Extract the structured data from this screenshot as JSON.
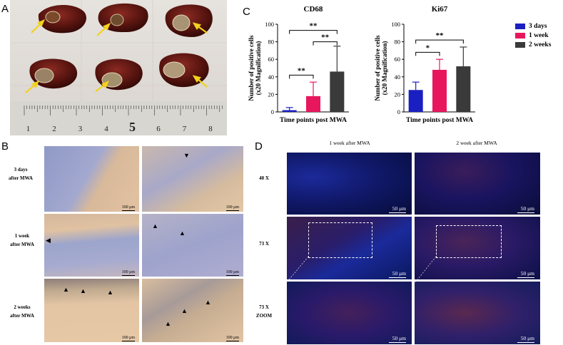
{
  "panels": {
    "a": "A",
    "b": "B",
    "c": "C",
    "d": "D"
  },
  "panel_a": {
    "ruler_numbers": [
      "1",
      "2",
      "3",
      "4",
      "5",
      "6",
      "7",
      "8"
    ]
  },
  "panel_b": {
    "rows": [
      {
        "line1": "3 days",
        "line2": "after MWA"
      },
      {
        "line1": "1 week",
        "line2": "after MWA"
      },
      {
        "line1": "2 weeks",
        "line2": "after MWA"
      }
    ],
    "scale": "100 μm"
  },
  "panel_d": {
    "columns": [
      "1 week after MWA",
      "2 week after MWA"
    ],
    "rows": [
      {
        "line1": "40 X",
        "line2": ""
      },
      {
        "line1": "73 X",
        "line2": ""
      },
      {
        "line1": "73 X",
        "line2": "ZOOM"
      }
    ],
    "scale": "50 μm"
  },
  "legend": {
    "items": [
      {
        "label": "3 days",
        "color": "#1a1fc2"
      },
      {
        "label": "1 week",
        "color": "#e8175d"
      },
      {
        "label": "2 weeks",
        "color": "#3a3a3a"
      }
    ]
  },
  "chart_data": [
    {
      "type": "bar",
      "title": "CD68",
      "ylabel": "Number of positive cells (x20 Magnification)",
      "xlabel": "Time points post MWA",
      "ylim": [
        0,
        100
      ],
      "yticks": [
        0,
        20,
        40,
        60,
        80,
        100
      ],
      "categories": [
        "3 days",
        "1 week",
        "2 weeks"
      ],
      "values": [
        2,
        18,
        46
      ],
      "errors": [
        3,
        16,
        29
      ],
      "colors": [
        "#1a1fc2",
        "#e8175d",
        "#3a3a3a"
      ],
      "significance": [
        {
          "from": 0,
          "to": 1,
          "label": "**",
          "y": 42
        },
        {
          "from": 1,
          "to": 2,
          "label": "**",
          "y": 80
        },
        {
          "from": 0,
          "to": 2,
          "label": "**",
          "y": 93
        }
      ]
    },
    {
      "type": "bar",
      "title": "Ki67",
      "ylabel": "Number of positive cells (x20 Magnification)",
      "xlabel": "Time points post MWA",
      "ylim": [
        0,
        100
      ],
      "yticks": [
        0,
        20,
        40,
        60,
        80,
        100
      ],
      "categories": [
        "3 days",
        "1 week",
        "2 weeks"
      ],
      "values": [
        25,
        48,
        52
      ],
      "errors": [
        9,
        12,
        22
      ],
      "colors": [
        "#1a1fc2",
        "#e8175d",
        "#3a3a3a"
      ],
      "significance": [
        {
          "from": 0,
          "to": 1,
          "label": "*",
          "y": 68
        },
        {
          "from": 0,
          "to": 2,
          "label": "**",
          "y": 82
        }
      ]
    }
  ]
}
